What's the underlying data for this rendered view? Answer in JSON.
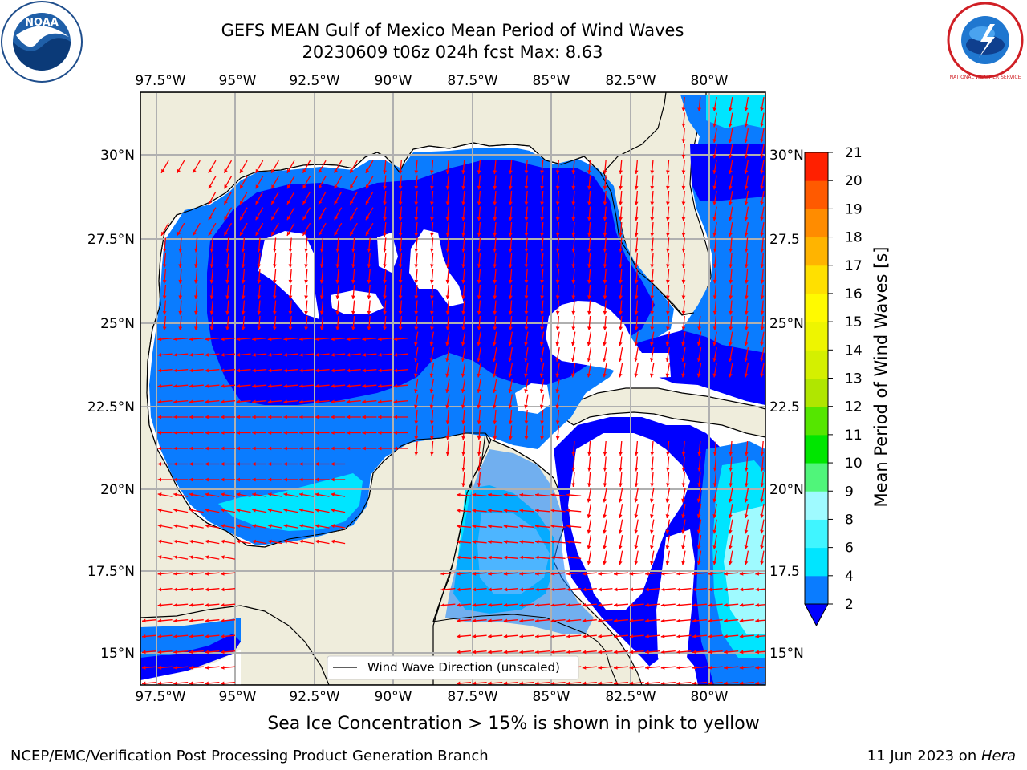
{
  "header": {
    "title_line1": "GEFS MEAN Gulf of Mexico Mean Period of Wind Waves",
    "title_line2": "20230609 t06z 024h fcst   Max: 8.63"
  },
  "logos": {
    "left_name": "NOAA",
    "left_ring_text": "NATIONAL OCEANIC AND ATMOSPHERIC ADMINISTRATION · U.S. DEPARTMENT OF COMMERCE",
    "right_ring_text": "NATIONAL WEATHER SERVICE"
  },
  "map": {
    "lon_ticks": [
      "97.5°W",
      "95°W",
      "92.5°W",
      "90°W",
      "87.5°W",
      "85°W",
      "82.5°W",
      "80°W"
    ],
    "lat_ticks_left": [
      "30°N",
      "27.5°N",
      "25°N",
      "22.5°N",
      "20°N",
      "17.5°N",
      "15°N"
    ],
    "lat_ticks_right": [
      "30°N",
      "27.5",
      "25°N",
      "22.5",
      "20°N",
      "17.5",
      "15°N"
    ],
    "legend_label": "Wind Wave Direction (unscaled)",
    "arrow_color": "#ff0000",
    "land_color": "#efeddc",
    "grid_color": "#b0b0b0"
  },
  "colorbar": {
    "label": "Mean Period of Wind Waves [s]",
    "ticks": [
      "2",
      "4",
      "6",
      "8",
      "9",
      "10",
      "11",
      "12",
      "13",
      "14",
      "15",
      "16",
      "17",
      "18",
      "19",
      "20",
      "21"
    ],
    "colors": [
      "#0a7cff",
      "#00e5ff",
      "#40f5ff",
      "#9ffaff",
      "#50f57a",
      "#00e600",
      "#55e600",
      "#b0e600",
      "#d4f000",
      "#eef500",
      "#fffa00",
      "#ffe000",
      "#ffb400",
      "#ff8c00",
      "#ff5a00",
      "#ff2000",
      "#ff0000"
    ],
    "extend_color": "#0000ff"
  },
  "caption": "Sea Ice Concentration > 15% is shown in pink to yellow",
  "footer": {
    "left": "NCEP/EMC/Verification Post Processing Product Generation Branch",
    "right_prefix": "11 Jun 2023 on ",
    "right_machine": "Hera"
  }
}
